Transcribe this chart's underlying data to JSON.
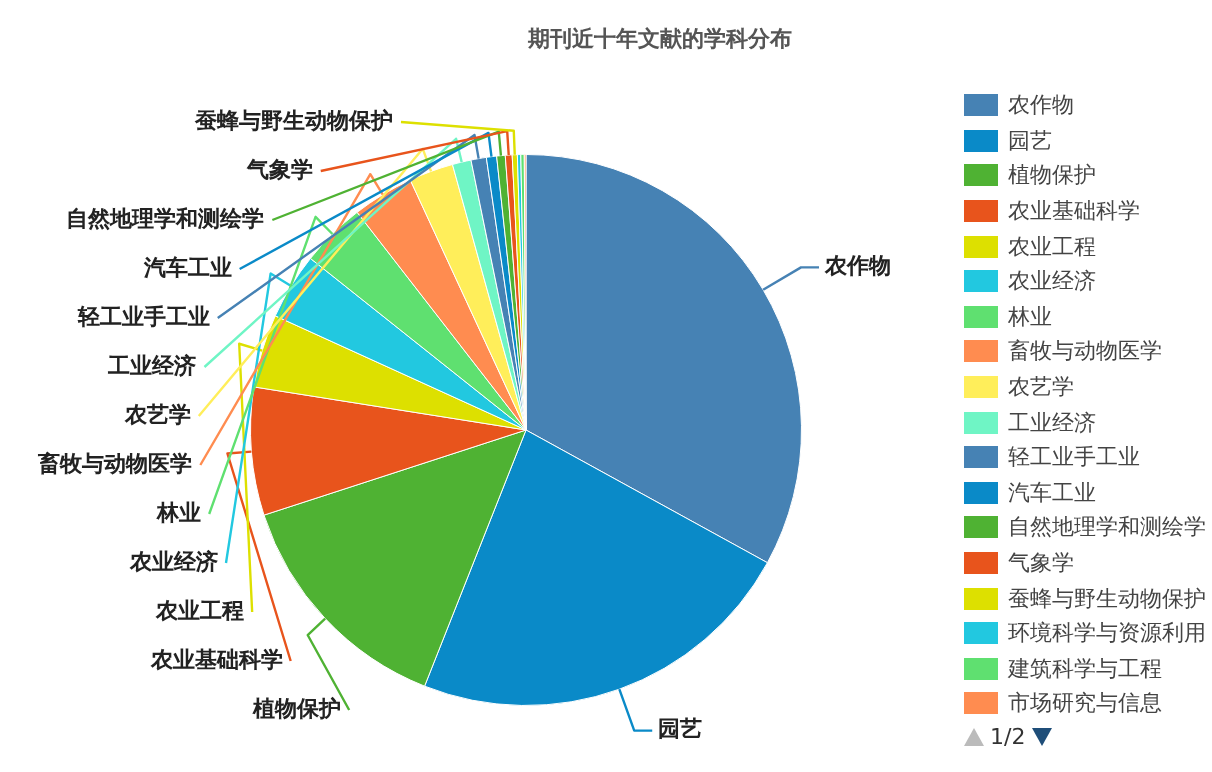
{
  "chart_data": {
    "type": "pie",
    "title": "期刊近十年文献的学科分布",
    "categories": [
      "农作物",
      "园艺",
      "植物保护",
      "农业基础科学",
      "农业工程",
      "农业经济",
      "林业",
      "畜牧与动物医学",
      "农艺学",
      "工业经济",
      "轻工业手工业",
      "汽车工业",
      "自然地理学和测绘学",
      "气象学",
      "蚕蜂与野生动物保护",
      "环境科学与资源利用",
      "建筑科学与工程",
      "市场研究与信息"
    ],
    "values": [
      33,
      23,
      14,
      7.5,
      4.3,
      3.9,
      3.8,
      3.6,
      2.6,
      1.1,
      0.9,
      0.6,
      0.5,
      0.4,
      0.3,
      0.2,
      0.2,
      0.1
    ],
    "colors": [
      "#4682b4",
      "#0a8ac8",
      "#4fb233",
      "#e8541c",
      "#dde000",
      "#22c8e0",
      "#5fe070",
      "#ff8c50",
      "#ffee5a",
      "#6ff5c5",
      "#4682b4",
      "#0a8ac8",
      "#4fb233",
      "#e8541c",
      "#dde000",
      "#22c8e0",
      "#5fe070",
      "#ff8c50"
    ],
    "legend": "right",
    "annotations": [
      "1/2"
    ]
  }
}
